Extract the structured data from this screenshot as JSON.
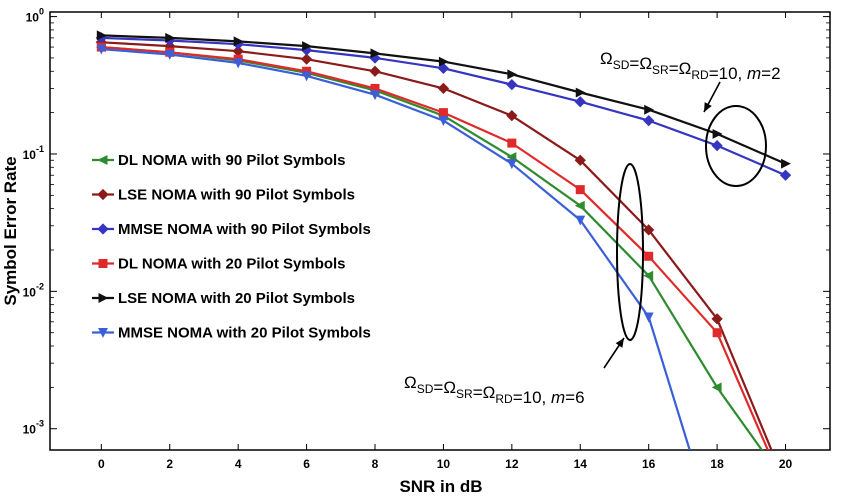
{
  "chart_data": {
    "type": "line",
    "xlabel": "SNR in dB",
    "ylabel": "Symbol Error Rate",
    "y_scale": "log",
    "xlim": [
      -1.5,
      21.3
    ],
    "ylim": [
      0.0007,
      1.08
    ],
    "x_ticks": [
      0,
      2,
      4,
      6,
      8,
      10,
      12,
      14,
      16,
      18,
      20
    ],
    "y_ticks": [
      {
        "value": 1,
        "base": "10",
        "exp": "0"
      },
      {
        "value": 0.1,
        "base": "10",
        "exp": "-1"
      },
      {
        "value": 0.01,
        "base": "10",
        "exp": "-2"
      },
      {
        "value": 0.001,
        "base": "10",
        "exp": "-3"
      }
    ],
    "grid": false,
    "legend_position": "left",
    "series": [
      {
        "name": "DL NOMA with 90 Pilot Symbols",
        "color": "#2e8b2e",
        "marker": "triangle-left",
        "x": [
          0,
          2,
          4,
          6,
          8,
          10,
          12,
          14,
          16,
          18,
          19.5
        ],
        "y": [
          0.6,
          0.55,
          0.48,
          0.39,
          0.29,
          0.19,
          0.095,
          0.042,
          0.013,
          0.002,
          0.0006
        ]
      },
      {
        "name": "LSE NOMA with 90 Pilot Symbols",
        "color": "#8b1a1a",
        "marker": "diamond",
        "x": [
          0,
          2,
          4,
          6,
          8,
          10,
          12,
          14,
          16,
          18,
          19.7
        ],
        "y": [
          0.65,
          0.61,
          0.56,
          0.49,
          0.4,
          0.3,
          0.19,
          0.09,
          0.028,
          0.0063,
          0.0006
        ]
      },
      {
        "name": "MMSE NOMA with 90 Pilot Symbols",
        "color": "#3535c0",
        "marker": "diamond",
        "x": [
          0,
          2,
          4,
          6,
          8,
          10,
          12,
          14,
          16,
          18,
          20
        ],
        "y": [
          0.7,
          0.67,
          0.63,
          0.57,
          0.5,
          0.42,
          0.32,
          0.24,
          0.175,
          0.115,
          0.07
        ]
      },
      {
        "name": "DL NOMA with 20 Pilot Symbols",
        "color": "#e02a2a",
        "marker": "square",
        "x": [
          0,
          2,
          4,
          6,
          8,
          10,
          12,
          14,
          16,
          18,
          19.6
        ],
        "y": [
          0.6,
          0.55,
          0.49,
          0.4,
          0.3,
          0.2,
          0.12,
          0.055,
          0.018,
          0.005,
          0.0006
        ]
      },
      {
        "name": "LSE NOMA with 20 Pilot Symbols",
        "color": "#111111",
        "marker": "triangle-right",
        "x": [
          0,
          2,
          4,
          6,
          8,
          10,
          12,
          14,
          16,
          18,
          20
        ],
        "y": [
          0.73,
          0.7,
          0.66,
          0.61,
          0.54,
          0.47,
          0.38,
          0.28,
          0.21,
          0.14,
          0.085
        ]
      },
      {
        "name": "MMSE NOMA with 20 Pilot Symbols",
        "color": "#3a5fd8",
        "marker": "triangle-down",
        "x": [
          0,
          2,
          4,
          6,
          8,
          10,
          12,
          14,
          16,
          17.2
        ],
        "y": [
          0.58,
          0.53,
          0.46,
          0.37,
          0.27,
          0.175,
          0.085,
          0.033,
          0.0065,
          0.0007
        ]
      }
    ],
    "annotations": [
      {
        "text": "ΩSD=ΩSR=ΩRD=10, m=2",
        "parts": [
          [
            "Ω",
            "SD"
          ],
          [
            "=Ω",
            "SR"
          ],
          [
            "=Ω",
            "RD"
          ],
          [
            "=10, ",
            ""
          ],
          [
            "m",
            ""
          ],
          [
            "=2",
            ""
          ]
        ]
      },
      {
        "text": "ΩSD=ΩSR=ΩRD=10, m=6",
        "parts": [
          [
            "Ω",
            "SD"
          ],
          [
            "=Ω",
            "SR"
          ],
          [
            "=Ω",
            "RD"
          ],
          [
            "=10, ",
            ""
          ],
          [
            "m",
            ""
          ],
          [
            "=6",
            ""
          ]
        ]
      }
    ]
  }
}
